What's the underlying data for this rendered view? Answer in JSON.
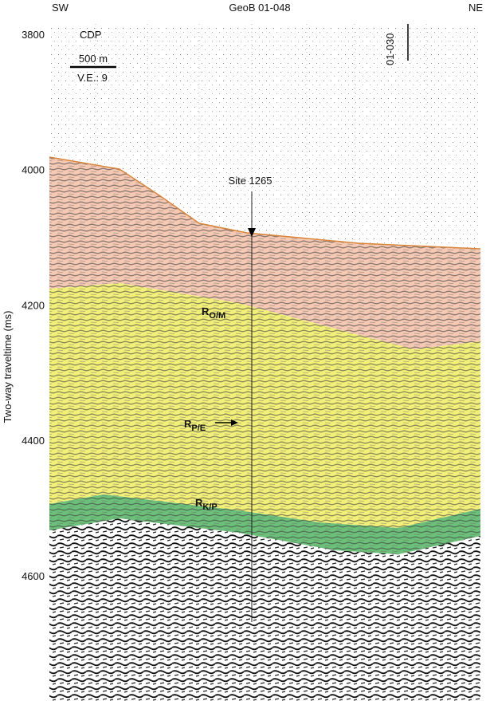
{
  "header": {
    "left": "SW",
    "title": "GeoB 01-048",
    "right": "NE"
  },
  "labels": {
    "cdp": "CDP",
    "scale": "500 m",
    "ve": "V.E.: 9",
    "crossing": "01-030",
    "site": "Site 1265"
  },
  "reflectors": [
    {
      "letter": "R",
      "sub": "O/M"
    },
    {
      "letter": "R",
      "sub": "P/E"
    },
    {
      "letter": "R",
      "sub": "K/P"
    }
  ],
  "axis": {
    "label": "Two-way traveltime (ms)",
    "ticks": [
      3800,
      4000,
      4200,
      4400,
      4600
    ]
  }
}
